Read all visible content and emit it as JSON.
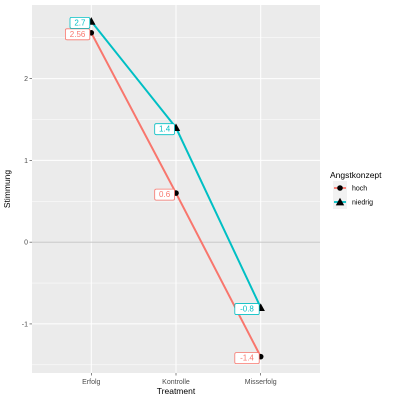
{
  "chart_data": {
    "type": "line",
    "categories": [
      "Erfolg",
      "Kontrolle",
      "Misserfolg"
    ],
    "xlabel": "Treatment",
    "ylabel": "Stimmung",
    "ylim": [
      -1.6,
      2.9
    ],
    "yticks": [
      -1,
      0,
      1,
      2
    ],
    "grid": true,
    "reference_line": 0,
    "legend": {
      "title": "Angstkonzept",
      "position": "right"
    },
    "series": [
      {
        "name": "hoch",
        "color": "#F8766D",
        "marker": "circle",
        "values": [
          2.56,
          0.6,
          -1.4
        ],
        "labels": [
          "2.56",
          "0.6",
          "-1.4"
        ]
      },
      {
        "name": "niedrig",
        "color": "#00BFC4",
        "marker": "triangle",
        "values": [
          2.7,
          1.4,
          -0.8
        ],
        "labels": [
          "2.7",
          "1.4",
          "-0.8"
        ]
      }
    ]
  }
}
